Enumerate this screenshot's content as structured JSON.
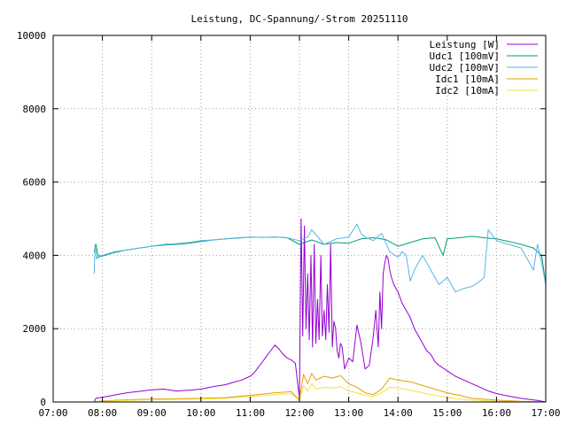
{
  "chart_data": {
    "type": "line",
    "title": "Leistung, DC-Spannung/-Strom 20251110",
    "xlabel": "",
    "ylabel": "",
    "xlim": [
      "07:00",
      "17:00"
    ],
    "ylim": [
      0,
      10000
    ],
    "x_ticks": [
      "07:00",
      "08:00",
      "09:00",
      "10:00",
      "11:00",
      "12:00",
      "13:00",
      "14:00",
      "15:00",
      "16:00",
      "17:00"
    ],
    "y_ticks": [
      "0",
      "2000",
      "4000",
      "6000",
      "8000",
      "10000"
    ],
    "grid": true,
    "legend_position": "top-right",
    "series": [
      {
        "name": "Leistung [W]",
        "color": "#9400d3",
        "x": [
          "07:50",
          "07:52",
          "08:00",
          "08:10",
          "08:20",
          "08:30",
          "08:45",
          "09:00",
          "09:15",
          "09:30",
          "09:45",
          "10:00",
          "10:15",
          "10:30",
          "10:40",
          "10:50",
          "11:00",
          "11:05",
          "11:10",
          "11:15",
          "11:20",
          "11:25",
          "11:30",
          "11:35",
          "11:40",
          "11:45",
          "11:50",
          "11:55",
          "12:00",
          "12:02",
          "12:04",
          "12:06",
          "12:08",
          "12:10",
          "12:12",
          "12:14",
          "12:16",
          "12:18",
          "12:20",
          "12:22",
          "12:24",
          "12:26",
          "12:28",
          "12:30",
          "12:32",
          "12:34",
          "12:36",
          "12:38",
          "12:40",
          "12:42",
          "12:44",
          "12:46",
          "12:48",
          "12:50",
          "12:52",
          "12:55",
          "13:00",
          "13:05",
          "13:10",
          "13:15",
          "13:20",
          "13:25",
          "13:30",
          "13:33",
          "13:36",
          "13:38",
          "13:40",
          "13:42",
          "13:44",
          "13:46",
          "13:48",
          "13:50",
          "13:52",
          "13:55",
          "14:00",
          "14:05",
          "14:10",
          "14:15",
          "14:20",
          "14:25",
          "14:30",
          "14:35",
          "14:40",
          "14:45",
          "14:50",
          "15:00",
          "15:10",
          "15:20",
          "15:30",
          "15:40",
          "15:50",
          "16:00",
          "16:10",
          "16:20",
          "16:30",
          "16:40",
          "16:50",
          "17:00"
        ],
        "values": [
          0,
          100,
          130,
          170,
          210,
          250,
          290,
          330,
          350,
          300,
          320,
          350,
          420,
          470,
          540,
          600,
          700,
          800,
          950,
          1100,
          1250,
          1400,
          1550,
          1450,
          1300,
          1200,
          1150,
          1050,
          100,
          5000,
          1800,
          4800,
          2000,
          3500,
          1700,
          4000,
          1500,
          4300,
          1600,
          2800,
          1700,
          4000,
          1800,
          2500,
          1700,
          3200,
          1900,
          4300,
          1500,
          2200,
          2000,
          1400,
          1200,
          1600,
          1500,
          900,
          1200,
          1100,
          2100,
          1600,
          900,
          1000,
          1800,
          2500,
          1500,
          3000,
          2000,
          3500,
          3800,
          4000,
          3900,
          3600,
          3400,
          3200,
          3000,
          2700,
          2500,
          2300,
          2000,
          1800,
          1600,
          1400,
          1300,
          1100,
          1000,
          850,
          700,
          600,
          500,
          400,
          300,
          230,
          180,
          140,
          100,
          70,
          40,
          0
        ]
      },
      {
        "name": "Udc1 [100mV]",
        "color": "#009e73",
        "x": [
          "07:50",
          "07:52",
          "07:55",
          "08:00",
          "08:15",
          "08:30",
          "08:45",
          "09:00",
          "09:15",
          "09:30",
          "09:45",
          "10:00",
          "10:15",
          "10:30",
          "10:45",
          "11:00",
          "11:15",
          "11:30",
          "11:45",
          "12:00",
          "12:15",
          "12:30",
          "12:45",
          "13:00",
          "13:15",
          "13:30",
          "13:45",
          "14:00",
          "14:15",
          "14:30",
          "14:45",
          "14:55",
          "15:00",
          "15:15",
          "15:30",
          "15:45",
          "16:00",
          "16:15",
          "16:30",
          "16:45",
          "16:55",
          "17:00"
        ],
        "values": [
          4100,
          4300,
          3950,
          3980,
          4080,
          4150,
          4200,
          4250,
          4280,
          4300,
          4330,
          4380,
          4420,
          4450,
          4470,
          4500,
          4490,
          4500,
          4480,
          4300,
          4420,
          4300,
          4350,
          4330,
          4450,
          4480,
          4430,
          4250,
          4350,
          4450,
          4480,
          4000,
          4450,
          4480,
          4520,
          4480,
          4450,
          4380,
          4300,
          4200,
          4000,
          3200
        ]
      },
      {
        "name": "Udc2 [100mV]",
        "color": "#56b4e9",
        "x": [
          "07:50",
          "07:51",
          "07:53",
          "07:55",
          "08:00",
          "08:15",
          "08:30",
          "08:45",
          "09:00",
          "09:15",
          "09:30",
          "09:45",
          "10:00",
          "10:15",
          "10:30",
          "10:45",
          "11:00",
          "11:15",
          "11:30",
          "11:45",
          "12:00",
          "12:10",
          "12:15",
          "12:30",
          "12:45",
          "13:00",
          "13:10",
          "13:15",
          "13:20",
          "13:30",
          "13:40",
          "13:50",
          "14:00",
          "14:05",
          "14:10",
          "14:15",
          "14:20",
          "14:30",
          "14:40",
          "14:50",
          "15:00",
          "15:10",
          "15:20",
          "15:30",
          "15:40",
          "15:45",
          "15:50",
          "16:00",
          "16:15",
          "16:30",
          "16:40",
          "16:45",
          "16:50",
          "16:55",
          "17:00"
        ],
        "values": [
          3500,
          4300,
          3900,
          4000,
          4000,
          4100,
          4150,
          4200,
          4250,
          4300,
          4320,
          4350,
          4400,
          4420,
          4450,
          4480,
          4500,
          4490,
          4500,
          4480,
          4400,
          4500,
          4700,
          4300,
          4450,
          4500,
          4850,
          4600,
          4500,
          4400,
          4600,
          4100,
          3950,
          4100,
          4000,
          3300,
          3600,
          4000,
          3600,
          3200,
          3400,
          3000,
          3100,
          3150,
          3300,
          3400,
          4700,
          4400,
          4300,
          4200,
          3800,
          3600,
          4300,
          3800,
          3200
        ]
      },
      {
        "name": "Idc1 [10mA]",
        "color": "#e69f00",
        "x": [
          "07:50",
          "08:00",
          "08:30",
          "09:00",
          "09:30",
          "10:00",
          "10:30",
          "11:00",
          "11:30",
          "11:50",
          "12:00",
          "12:05",
          "12:10",
          "12:15",
          "12:20",
          "12:30",
          "12:40",
          "12:50",
          "13:00",
          "13:10",
          "13:20",
          "13:30",
          "13:40",
          "13:50",
          "14:00",
          "14:15",
          "14:30",
          "14:45",
          "15:00",
          "15:15",
          "15:30",
          "16:00",
          "16:30",
          "17:00"
        ],
        "values": [
          0,
          30,
          60,
          80,
          90,
          100,
          120,
          180,
          250,
          280,
          50,
          750,
          500,
          780,
          600,
          700,
          650,
          720,
          500,
          400,
          250,
          200,
          350,
          650,
          600,
          550,
          450,
          350,
          250,
          180,
          100,
          50,
          20,
          0
        ]
      },
      {
        "name": "Idc2 [10mA]",
        "color": "#f0e442",
        "x": [
          "07:50",
          "08:00",
          "08:30",
          "09:00",
          "09:30",
          "10:00",
          "10:30",
          "11:00",
          "11:30",
          "11:50",
          "12:00",
          "12:05",
          "12:10",
          "12:15",
          "12:20",
          "12:30",
          "12:40",
          "12:50",
          "13:00",
          "13:10",
          "13:20",
          "13:30",
          "13:40",
          "13:50",
          "14:00",
          "14:15",
          "14:30",
          "14:45",
          "15:00",
          "15:15",
          "15:30",
          "16:00",
          "16:30",
          "17:00"
        ],
        "values": [
          0,
          20,
          40,
          60,
          70,
          80,
          100,
          150,
          200,
          230,
          40,
          450,
          300,
          500,
          350,
          400,
          380,
          420,
          300,
          250,
          180,
          150,
          250,
          400,
          380,
          320,
          250,
          180,
          120,
          80,
          50,
          20,
          10,
          0
        ]
      }
    ]
  }
}
